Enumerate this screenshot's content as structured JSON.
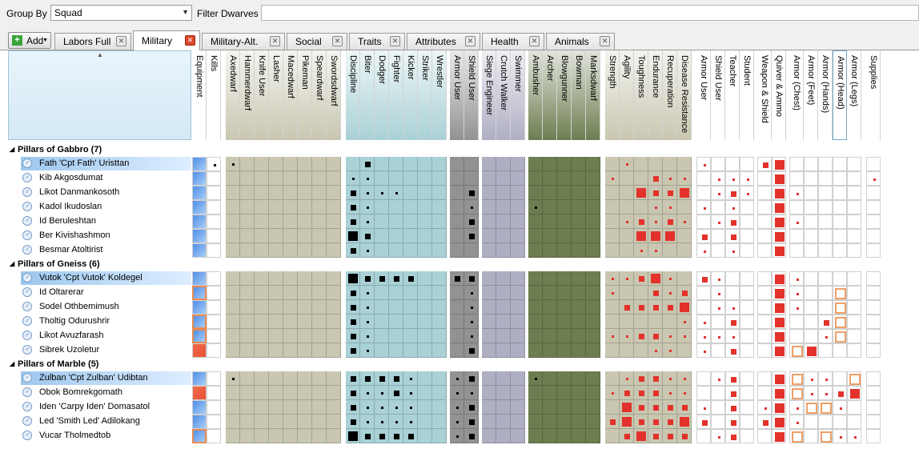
{
  "toolbar": {
    "group_by_label": "Group By",
    "group_by_value": "Squad",
    "filter_label": "Filter Dwarves",
    "filter_value": "",
    "add_label": "Add"
  },
  "tabs": [
    {
      "label": "Labors Full",
      "active": false
    },
    {
      "label": "Military",
      "active": true
    },
    {
      "label": "Military-Alt.",
      "active": false
    },
    {
      "label": "Social",
      "active": false
    },
    {
      "label": "Traits",
      "active": false
    },
    {
      "label": "Attributes",
      "active": false
    },
    {
      "label": "Health",
      "active": false
    },
    {
      "label": "Animals",
      "active": false
    }
  ],
  "column_groups": [
    {
      "color": "#ffffff",
      "columns": [
        "Equipment",
        "Kills"
      ]
    },
    {
      "color": "#c9c7b1",
      "columns": [
        "Axedwarf",
        "Hammerdwarf",
        "Knife User",
        "Lasher",
        "Macedwarf",
        "Pikeman",
        "Speardwarf",
        "Swordsdwarf"
      ]
    },
    {
      "color": "#a9d1d6",
      "columns": [
        "Discipline",
        "Biter",
        "Dodger",
        "Fighter",
        "Kicker",
        "Striker",
        "Wrestler"
      ]
    },
    {
      "color": "#929292",
      "columns": [
        "Armor User",
        "Shield User"
      ]
    },
    {
      "color": "#afafc4",
      "columns": [
        "Siege Engineer",
        "Crutch Walker",
        "Swimmer"
      ]
    },
    {
      "color": "#6d7d50",
      "columns": [
        "Ambusher",
        "Archer",
        "Blowgunner",
        "Bowman",
        "Marksdwarf"
      ]
    },
    {
      "color": "#c9c7b1",
      "columns": [
        "Strength",
        "Agility",
        "Toughness",
        "Endurance",
        "Recuperation",
        "Disease Resistance"
      ]
    },
    {
      "color": "#ffffff",
      "columns": [
        "Armor User",
        "Shield User",
        "Teacher",
        "Student"
      ]
    },
    {
      "color": "#ffffff",
      "columns": [
        "Weapon & Shield",
        "Quiver & Ammo"
      ]
    },
    {
      "color": "#ffffff",
      "columns": [
        "Armor (Chest)",
        "Armor (Feet)",
        "Armor (Hands)",
        "Armor (Head)",
        "Armor (Legs)"
      ]
    },
    {
      "color": "#ffffff",
      "columns": [
        "Supplies"
      ]
    }
  ],
  "groups": [
    {
      "name": "Pillars of Gabbro (7)",
      "members": [
        {
          "name": "Fath 'Cpt Fath' Uristtan",
          "leader": true
        },
        {
          "name": "Kib Akgosdumat",
          "leader": false
        },
        {
          "name": "Likot Danmankosoth",
          "leader": false
        },
        {
          "name": "Kadol Ikudoslan",
          "leader": false
        },
        {
          "name": "Id Beruleshtan",
          "leader": false
        },
        {
          "name": "Ber Kivishashmon",
          "leader": false
        },
        {
          "name": "Besmar Atoltirist",
          "leader": false
        }
      ]
    },
    {
      "name": "Pillars of Gneiss (6)",
      "members": [
        {
          "name": "Vutok 'Cpt Vutok' Koldegel",
          "leader": true
        },
        {
          "name": "Id Oltarerar",
          "leader": false
        },
        {
          "name": "Sodel Othbemimush",
          "leader": false
        },
        {
          "name": "Tholtig Odurushrir",
          "leader": false
        },
        {
          "name": "Likot Avuzfarash",
          "leader": false
        },
        {
          "name": "Sibrek Uzoletur",
          "leader": false
        }
      ]
    },
    {
      "name": "Pillars of Marble (5)",
      "members": [
        {
          "name": "Zulban 'Cpt Zulban' Udibtan",
          "leader": true
        },
        {
          "name": "Obok Bomrekgomath",
          "leader": false
        },
        {
          "name": "Iden 'Carpy Iden' Domasatol",
          "leader": false
        },
        {
          "name": "Led 'Smith Led' Adilokang",
          "leader": false
        },
        {
          "name": "Vucar Tholmedtob",
          "leader": false
        }
      ]
    }
  ],
  "equipment_status": [
    [
      "blue",
      "blue",
      "blue",
      "blue",
      "blue",
      "blue",
      "blue"
    ],
    [
      "blue",
      "orange",
      "blue",
      "orange",
      "orange",
      "red"
    ],
    [
      "blue",
      "red",
      "blue",
      "blue",
      "orange"
    ]
  ],
  "cell_values": [
    [
      {
        "k": "1",
        "d2": "2",
        "m": "1",
        "ag": "1",
        "qa": "3",
        "ws": "2",
        "ar": "1"
      },
      {
        "d1": "1",
        "d2": "1",
        "st": "1",
        "en": "2",
        "re": "1",
        "dr": "1",
        "as": "1",
        "te": "1",
        "sg": "1",
        "qa": "3",
        "su": "1"
      },
      {
        "d1": "2",
        "d2": "1",
        "d3": "1",
        "d4": "1",
        "sh": "2",
        "to": "3",
        "en": "2",
        "re": "2",
        "dr": "3",
        "as": "1",
        "te": "2",
        "sg": "1",
        "qa": "3",
        "ch": "1"
      },
      {
        "d1": "2",
        "d2": "1",
        "sh": "1",
        "am": "1",
        "en": "1",
        "re": "1",
        "ar": "1",
        "te": "1",
        "qa": "3"
      },
      {
        "d1": "2",
        "d2": "1",
        "sh": "2",
        "ag": "1",
        "to": "2",
        "en": "1",
        "re": "2",
        "dr": "1",
        "as": "1",
        "te": "2",
        "qa": "3",
        "ch": "1"
      },
      {
        "d1": "3",
        "d2": "2",
        "sh": "2",
        "to": "3",
        "en": "3",
        "re": "3",
        "ar": "2",
        "te": "2",
        "qa": "3"
      },
      {
        "d1": "2",
        "d2": "1",
        "to": "1",
        "en": "1",
        "ar": "1",
        "te": "1",
        "qa": "3"
      }
    ],
    [
      {
        "d1": "3",
        "d2": "2",
        "d3": "2",
        "d4": "2",
        "d5": "2",
        "a1": "2",
        "sh": "2",
        "ag": "1",
        "st": "1",
        "to": "2",
        "en": "3",
        "re": "1",
        "ar": "2",
        "as": "1",
        "qa": "3",
        "ch": "1"
      },
      {
        "d1": "2",
        "d2": "1",
        "sh": "1",
        "st": "1",
        "en": "2",
        "re": "1",
        "dr": "2",
        "as": "1",
        "qa": "3",
        "ch": "1",
        "hd": "o"
      },
      {
        "d1": "2",
        "d2": "1",
        "sh": "1",
        "ag": "2",
        "to": "2",
        "en": "2",
        "re": "2",
        "dr": "3",
        "as": "1",
        "te": "1",
        "qa": "3",
        "ch": "1",
        "hd": "o"
      },
      {
        "d1": "2",
        "d2": "1",
        "sh": "1",
        "dr": "1",
        "ar": "1",
        "te": "2",
        "qa": "3",
        "ha": "2",
        "hd": "o"
      },
      {
        "d1": "2",
        "d2": "1",
        "sh": "1",
        "st": "1",
        "ag": "1",
        "to": "2",
        "en": "2",
        "re": "1",
        "dr": "1",
        "ar": "1",
        "as": "1",
        "te": "1",
        "qa": "3",
        "ha": "1",
        "hd": "o"
      },
      {
        "d1": "2",
        "d2": "1",
        "sh": "2",
        "en": "1",
        "re": "1",
        "ar": "1",
        "te": "2",
        "qa": "3",
        "ch": "o",
        "fe": "3"
      }
    ],
    [
      {
        "m": "1",
        "d1": "2",
        "d2": "2",
        "d3": "2",
        "d4": "2",
        "d5": "1",
        "a1": "1",
        "sh": "2",
        "am": "1",
        "ag": "1",
        "to": "2",
        "en": "2",
        "re": "1",
        "dr": "1",
        "as": "1",
        "te": "2",
        "qa": "3",
        "ch": "o",
        "fe": "1",
        "ha": "1",
        "le": "o"
      },
      {
        "d1": "2",
        "d2": "1",
        "d3": "1",
        "d4": "2",
        "d5": "1",
        "a1": "1",
        "sh": "1",
        "st": "1",
        "ag": "2",
        "to": "2",
        "en": "2",
        "re": "1",
        "dr": "1",
        "te": "2",
        "qa": "3",
        "ch": "o",
        "fe": "1",
        "ha": "1",
        "hd": "2",
        "le": "3"
      },
      {
        "d1": "2",
        "d2": "1",
        "d3": "1",
        "d4": "1",
        "d5": "1",
        "a1": "1",
        "sh": "2",
        "ag": "3",
        "to": "2",
        "en": "2",
        "re": "2",
        "dr": "2",
        "ar": "1",
        "te": "2",
        "ws": "1",
        "qa": "3",
        "ch": "1",
        "fe": "o",
        "ha": "o",
        "hd": "1"
      },
      {
        "d1": "2",
        "d2": "1",
        "d3": "1",
        "d4": "1",
        "d5": "1",
        "a1": "1",
        "sh": "2",
        "st": "2",
        "ag": "3",
        "to": "2",
        "en": "2",
        "re": "2",
        "dr": "3",
        "ar": "2",
        "te": "2",
        "ws": "2",
        "qa": "3",
        "ch": "1"
      },
      {
        "d1": "3",
        "d2": "2",
        "d3": "2",
        "d4": "2",
        "d5": "2",
        "a1": "1",
        "sh": "2",
        "ag": "2",
        "to": "3",
        "en": "2",
        "re": "2",
        "dr": "2",
        "as": "1",
        "te": "2",
        "qa": "3",
        "ch": "o",
        "ha": "o",
        "hd": "1",
        "le": "1"
      }
    ]
  ]
}
